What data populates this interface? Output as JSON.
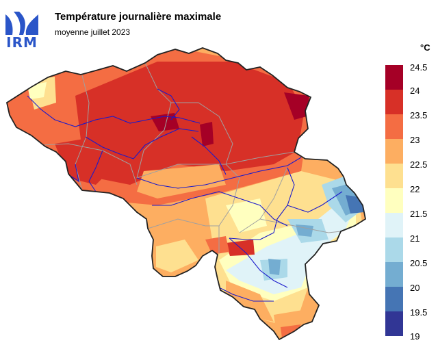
{
  "logo": {
    "text": "IRM",
    "color": "#2a55c8"
  },
  "header": {
    "title": "Température journalière maximale",
    "subtitle": "moyenne juillet 2023"
  },
  "legend": {
    "unit": "°C",
    "ticks": [
      "24.5",
      "24",
      "23.5",
      "23",
      "22.5",
      "22",
      "21.5",
      "21",
      "20.5",
      "20",
      "19.5",
      "19"
    ],
    "colors": [
      "#a50026",
      "#d73027",
      "#f46d43",
      "#fdae61",
      "#fee090",
      "#ffffbf",
      "#e0f3f8",
      "#abd9e9",
      "#74add1",
      "#4575b4",
      "#313695"
    ]
  },
  "map": {
    "border_color": "#222222",
    "river_color": "#1a1acc",
    "province_color": "#a0a0a0"
  }
}
